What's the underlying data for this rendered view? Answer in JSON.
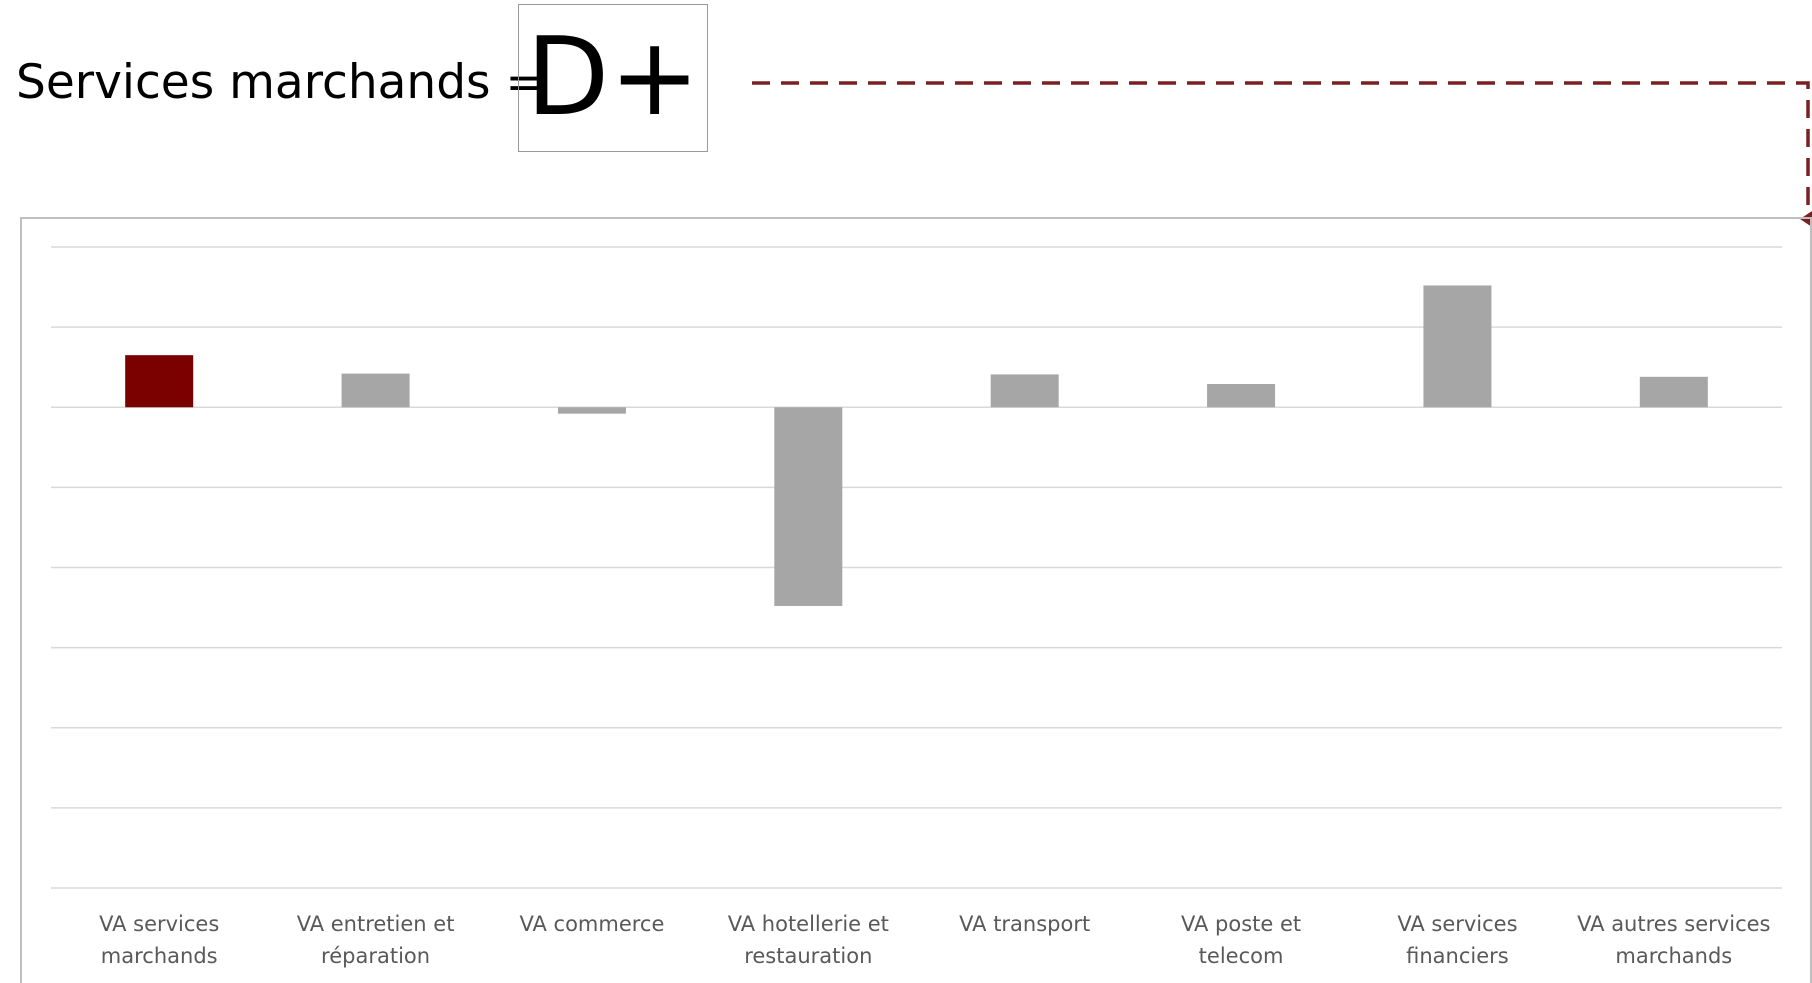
{
  "header": {
    "label": "Services marchands =",
    "grade": "D+"
  },
  "colors": {
    "highlight": "#7b0000",
    "bars": "#a6a6a6",
    "connector": "#7b2020",
    "gridline": "#d9d9d9",
    "frame": "#bfbfbf",
    "axis_text": "#595959"
  },
  "chart_data": {
    "type": "bar",
    "categories": [
      [
        "VA services",
        "marchands"
      ],
      [
        "VA entretien et",
        "réparation"
      ],
      [
        "VA commerce"
      ],
      [
        "VA hotellerie et",
        "restauration"
      ],
      [
        "VA transport"
      ],
      [
        "VA poste et",
        "telecom"
      ],
      [
        "VA services",
        "financiers"
      ],
      [
        "VA autres services",
        "marchands"
      ]
    ],
    "values": [
      0.65,
      0.42,
      -0.08,
      -2.48,
      0.41,
      0.29,
      1.52,
      0.38
    ],
    "highlight_index": 0,
    "ylim": [
      -6,
      2
    ],
    "grid_step": 1,
    "grid": true,
    "title": "",
    "xlabel": "",
    "ylabel": ""
  }
}
